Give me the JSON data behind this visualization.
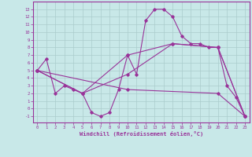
{
  "background_color": "#c8e8e8",
  "grid_color": "#aacccc",
  "line_color": "#993399",
  "xlabel": "Windchill (Refroidissement éolien,°C)",
  "xlim": [
    -0.5,
    23.5
  ],
  "ylim": [
    -1.8,
    14.0
  ],
  "xticks": [
    0,
    1,
    2,
    3,
    4,
    5,
    6,
    7,
    8,
    9,
    10,
    11,
    12,
    13,
    14,
    15,
    16,
    17,
    18,
    19,
    20,
    21,
    22,
    23
  ],
  "yticks": [
    -1,
    0,
    1,
    2,
    3,
    4,
    5,
    6,
    7,
    8,
    9,
    10,
    11,
    12,
    13
  ],
  "series1_x": [
    0,
    1,
    2,
    3,
    4,
    5,
    6,
    7,
    8,
    9,
    10,
    11,
    12,
    13,
    14,
    15,
    16,
    17,
    18,
    19,
    20,
    21,
    22,
    23
  ],
  "series1_y": [
    5.0,
    6.5,
    2.0,
    3.0,
    2.5,
    2.0,
    -0.5,
    -1.0,
    -0.5,
    2.5,
    7.0,
    4.5,
    11.5,
    13.0,
    13.0,
    12.0,
    9.5,
    8.5,
    8.5,
    8.0,
    8.0,
    3.0,
    1.5,
    -1.0
  ],
  "series2_x": [
    0,
    5,
    10,
    15,
    20,
    23
  ],
  "series2_y": [
    5.0,
    2.0,
    7.0,
    8.5,
    8.0,
    -1.0
  ],
  "series3_x": [
    0,
    5,
    10,
    15,
    20,
    23
  ],
  "series3_y": [
    5.0,
    2.0,
    4.5,
    8.5,
    8.0,
    -1.0
  ],
  "series4_x": [
    0,
    10,
    20,
    23
  ],
  "series4_y": [
    5.0,
    2.5,
    2.0,
    -1.0
  ]
}
